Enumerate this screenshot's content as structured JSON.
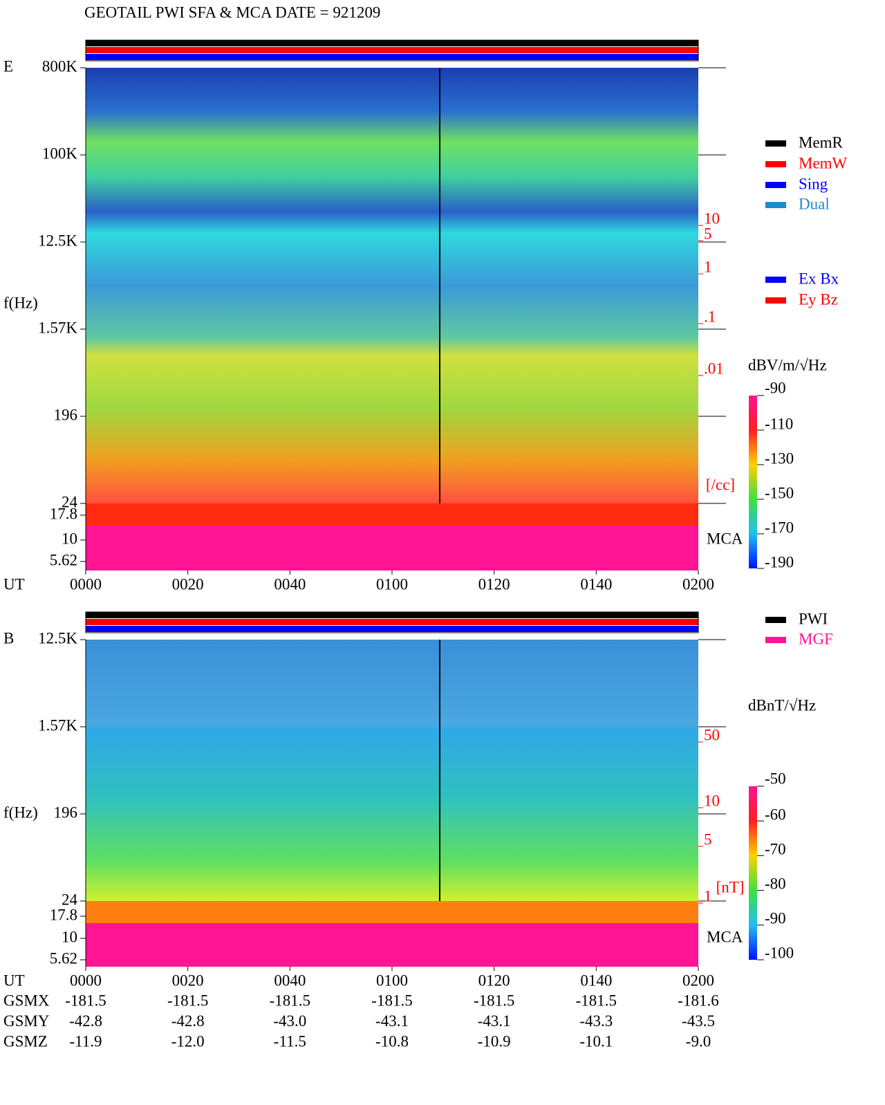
{
  "title": "GEOTAIL  PWI SFA & MCA   DATE = 921209",
  "panels": [
    {
      "label": "E",
      "y_axis_label": "f(Hz)",
      "freq_ticks": [
        "800K",
        "100K",
        "12.5K",
        "1.57K",
        "196",
        "24",
        "17.8",
        "10",
        "5.62"
      ],
      "right_scale": [
        "10",
        "5",
        "1",
        ".1",
        ".01"
      ],
      "right_unit": "[/cc]",
      "mca": "MCA",
      "colorbar_unit": "dBV/m/√Hz",
      "colorbar_ticks": [
        -90,
        -110,
        -130,
        -150,
        -170,
        -190
      ],
      "time_label": "UT",
      "time_ticks": [
        "0000",
        "0020",
        "0040",
        "0100",
        "0120",
        "0140",
        "0200"
      ]
    },
    {
      "label": "B",
      "y_axis_label": "f(Hz)",
      "freq_ticks": [
        "12.5K",
        "1.57K",
        "196",
        "24",
        "17.8",
        "10",
        "5.62"
      ],
      "right_scale": [
        "50",
        "10",
        "5",
        "1"
      ],
      "right_unit": "[nT]",
      "mca": "MCA",
      "colorbar_unit": "dBnT/√Hz",
      "colorbar_ticks": [
        -50,
        -60,
        -70,
        -80,
        -90,
        -100
      ],
      "time_label": "UT",
      "time_ticks": [
        "0000",
        "0020",
        "0040",
        "0100",
        "0120",
        "0140",
        "0200"
      ]
    }
  ],
  "legend_top": [
    {
      "name": "MemR",
      "color": "#000000"
    },
    {
      "name": "MemW",
      "color": "#ff0000"
    },
    {
      "name": "Sing",
      "color": "#0000ff"
    },
    {
      "name": "Dual",
      "color": "#1e8ad0"
    }
  ],
  "legend_antenna": [
    {
      "name": "Ex Bx",
      "color": "#0000ff"
    },
    {
      "name": "Ey Bz",
      "color": "#ff0000"
    }
  ],
  "legend_bottom": [
    {
      "name": "PWI",
      "color": "#000000"
    },
    {
      "name": "MGF",
      "color": "#ff1493"
    }
  ],
  "orbit": [
    {
      "label": "GSMX",
      "values": [
        "-181.5",
        "-181.5",
        "-181.5",
        "-181.5",
        "-181.5",
        "-181.5",
        "-181.6"
      ]
    },
    {
      "label": "GSMY",
      "values": [
        "-42.8",
        "-42.8",
        "-43.0",
        "-43.1",
        "-43.1",
        "-43.3",
        "-43.5"
      ]
    },
    {
      "label": "GSMZ",
      "values": [
        "-11.9",
        "-12.0",
        "-11.5",
        "-10.8",
        "-10.9",
        "-10.1",
        "-9.0"
      ]
    }
  ]
}
